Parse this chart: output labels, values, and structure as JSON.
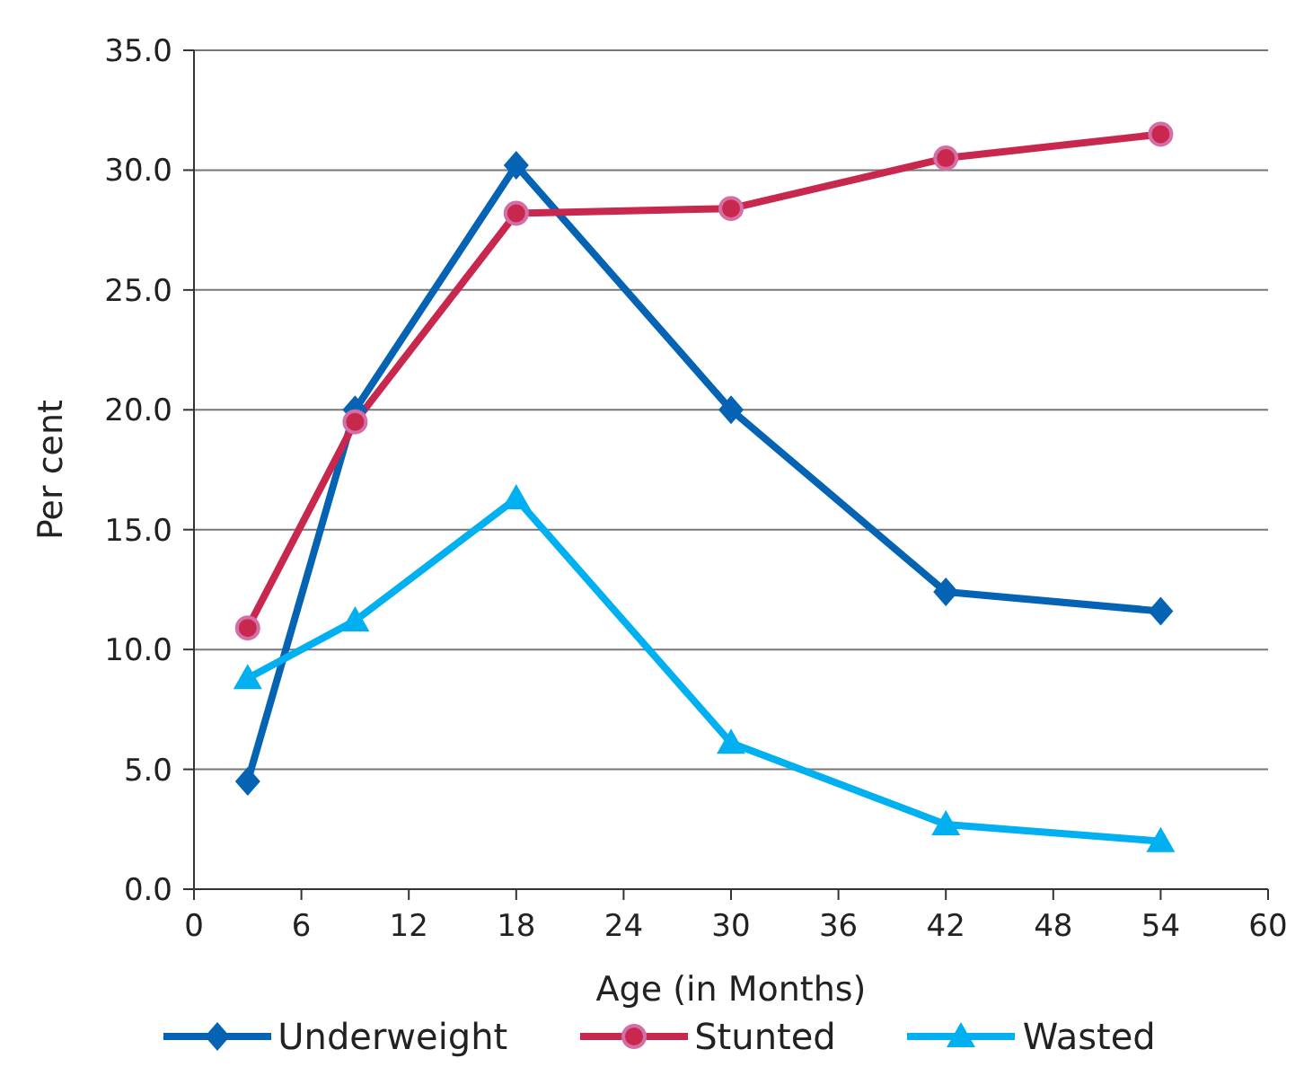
{
  "chart_data": {
    "type": "line",
    "xlabel": "Age (in Months)",
    "ylabel": "Per cent",
    "x": [
      3,
      9,
      18,
      30,
      42,
      54
    ],
    "xlim": [
      0,
      60
    ],
    "xticks": [
      0,
      6,
      12,
      18,
      24,
      30,
      36,
      42,
      48,
      54,
      60
    ],
    "ylim": [
      0,
      35
    ],
    "yticks": [
      {
        "value": 0,
        "label": "0.0"
      },
      {
        "value": 5,
        "label": "5.0"
      },
      {
        "value": 10,
        "label": "10.0"
      },
      {
        "value": 15,
        "label": "15.0"
      },
      {
        "value": 20,
        "label": "20.0"
      },
      {
        "value": 25,
        "label": "25.0"
      },
      {
        "value": 30,
        "label": "30.0"
      },
      {
        "value": 35,
        "label": "35.0"
      }
    ],
    "grid": "y",
    "legend": "bottom",
    "line_style": "solid",
    "series": [
      {
        "name": "Underweight",
        "color": "#0563b4",
        "marker": "diamond",
        "values": [
          4.5,
          20.0,
          30.2,
          20.0,
          12.4,
          11.6
        ]
      },
      {
        "name": "Stunted",
        "color": "#c8284d",
        "marker": "circle",
        "values": [
          10.9,
          19.5,
          28.2,
          28.4,
          30.5,
          31.5
        ]
      },
      {
        "name": "Wasted",
        "color": "#00b0f0",
        "marker": "triangle",
        "values": [
          8.8,
          11.2,
          16.3,
          6.1,
          2.7,
          2.0
        ]
      }
    ]
  }
}
